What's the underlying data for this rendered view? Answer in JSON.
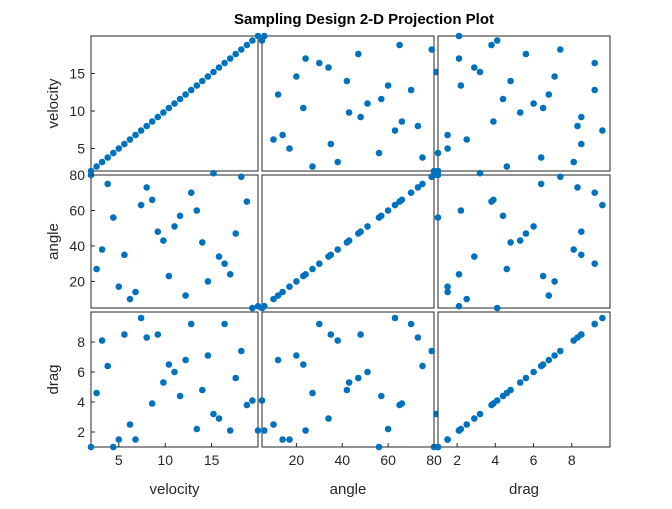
{
  "chart_data": {
    "type": "scatter",
    "title": "Sampling Design 2-D Projection Plot",
    "variables": [
      {
        "name": "velocity",
        "range": [
          2,
          20
        ],
        "ticks": [
          5,
          10,
          15
        ],
        "y_ticks": [
          5,
          10,
          15
        ]
      },
      {
        "name": "angle",
        "range": [
          5,
          80
        ],
        "ticks": [
          20,
          40,
          60,
          80
        ],
        "y_ticks": [
          20,
          40,
          60,
          80
        ]
      },
      {
        "name": "drag",
        "range": [
          1,
          10
        ],
        "ticks": [
          2,
          4,
          6,
          8
        ],
        "y_ticks": [
          2,
          4,
          6,
          8
        ]
      }
    ],
    "marker_color": "#0072BD",
    "grid": false,
    "samples": [
      {
        "velocity": 2.0,
        "angle": 80.0,
        "drag": 1.0
      },
      {
        "velocity": 2.6,
        "angle": 27.0,
        "drag": 4.6
      },
      {
        "velocity": 3.2,
        "angle": 38.0,
        "drag": 8.1
      },
      {
        "velocity": 3.8,
        "angle": 75.0,
        "drag": 6.4
      },
      {
        "velocity": 4.4,
        "angle": 56.0,
        "drag": 1.0
      },
      {
        "velocity": 5.0,
        "angle": 17.0,
        "drag": 1.5
      },
      {
        "velocity": 5.6,
        "angle": 35.0,
        "drag": 8.5
      },
      {
        "velocity": 6.2,
        "angle": 10.0,
        "drag": 2.5
      },
      {
        "velocity": 6.8,
        "angle": 14.0,
        "drag": 1.5
      },
      {
        "velocity": 7.4,
        "angle": 63.0,
        "drag": 9.6
      },
      {
        "velocity": 8.0,
        "angle": 73.0,
        "drag": 8.3
      },
      {
        "velocity": 8.6,
        "angle": 66.0,
        "drag": 3.9
      },
      {
        "velocity": 9.2,
        "angle": 48.0,
        "drag": 8.5
      },
      {
        "velocity": 9.8,
        "angle": 43.0,
        "drag": 5.3
      },
      {
        "velocity": 10.4,
        "angle": 23.0,
        "drag": 6.5
      },
      {
        "velocity": 11.0,
        "angle": 51.0,
        "drag": 6.0
      },
      {
        "velocity": 11.6,
        "angle": 57.0,
        "drag": 4.4
      },
      {
        "velocity": 12.2,
        "angle": 12.0,
        "drag": 6.8
      },
      {
        "velocity": 12.8,
        "angle": 70.0,
        "drag": 9.2
      },
      {
        "velocity": 13.4,
        "angle": 60.0,
        "drag": 2.2
      },
      {
        "velocity": 14.0,
        "angle": 42.0,
        "drag": 4.8
      },
      {
        "velocity": 14.6,
        "angle": 20.0,
        "drag": 7.1
      },
      {
        "velocity": 15.2,
        "angle": 81.0,
        "drag": 3.2
      },
      {
        "velocity": 15.8,
        "angle": 34.0,
        "drag": 2.9
      },
      {
        "velocity": 16.4,
        "angle": 30.0,
        "drag": 9.2
      },
      {
        "velocity": 17.0,
        "angle": 24.0,
        "drag": 2.1
      },
      {
        "velocity": 17.6,
        "angle": 47.0,
        "drag": 5.6
      },
      {
        "velocity": 18.2,
        "angle": 79.0,
        "drag": 7.4
      },
      {
        "velocity": 18.8,
        "angle": 65.0,
        "drag": 3.8
      },
      {
        "velocity": 19.4,
        "angle": 5.0,
        "drag": 4.1
      },
      {
        "velocity": 20.0,
        "angle": 6.0,
        "drag": 2.1
      }
    ]
  }
}
